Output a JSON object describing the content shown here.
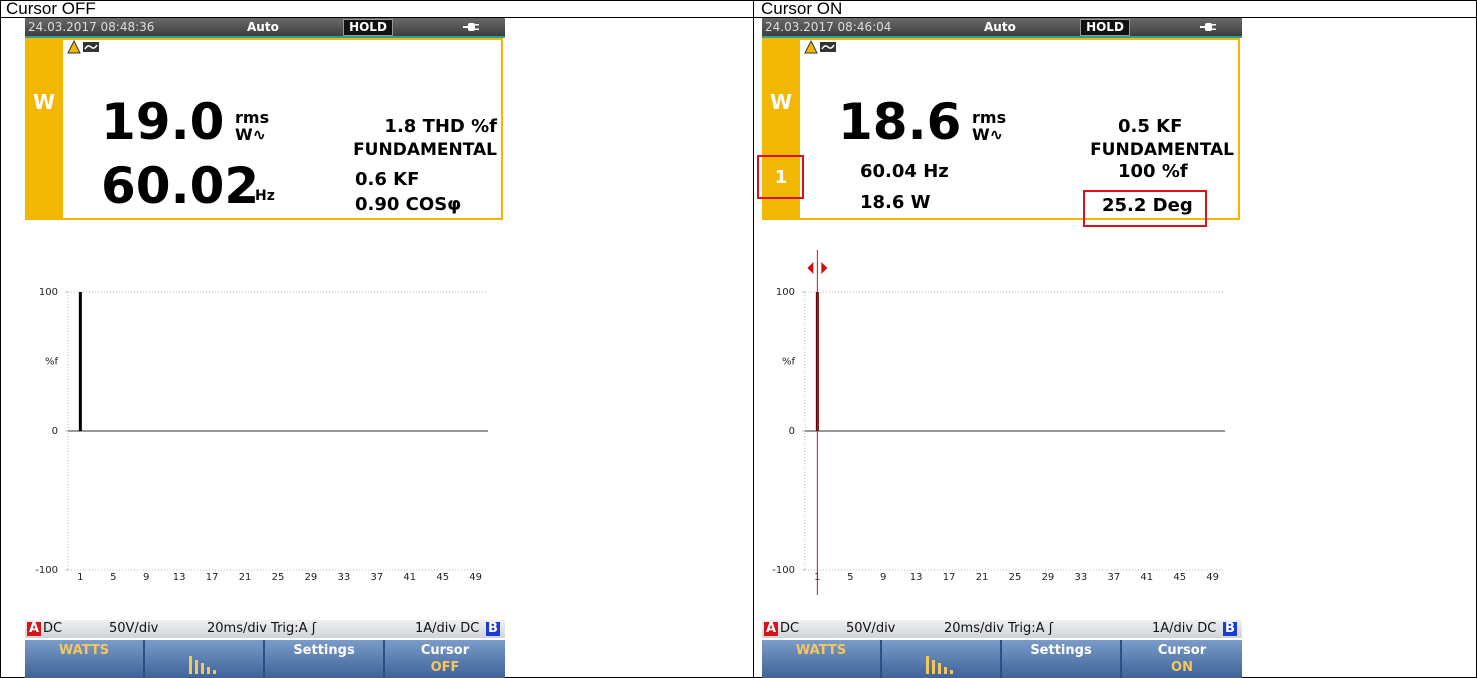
{
  "table": {
    "headers": [
      "Cursor OFF",
      "Cursor ON"
    ]
  },
  "panels": [
    {
      "status": {
        "datetime": "24.03.2017 08:48:36",
        "mode": "Auto",
        "hold": "HOLD"
      },
      "function": "W",
      "readings": {
        "main_value": "19.0",
        "main_unit_top": "rms",
        "main_unit_bottom": "W∿",
        "right_top": "1.8 THD %f",
        "right_sub": "FUNDAMENTAL",
        "second_value": "60.02",
        "second_unit": "Hz",
        "right_mid": "0.6 KF",
        "right_bottom": "0.90 COSφ"
      },
      "chart": {
        "type": "bar",
        "ylabel": "%f",
        "ylim": [
          -100,
          100
        ],
        "yticks": [
          -100,
          0,
          100
        ],
        "xlim": [
          -0.5,
          50.5
        ],
        "xticks": [
          1,
          5,
          9,
          13,
          17,
          21,
          25,
          29,
          33,
          37,
          41,
          45,
          49
        ],
        "x": [
          1
        ],
        "values": [
          100
        ],
        "color": "#000000"
      },
      "footer": {
        "a": "A",
        "a_coupling": "DC",
        "a_scale": "50V/div",
        "timebase": "20ms/div Trig:A ʃ",
        "b_scale": "1A/div DC",
        "b": "B"
      },
      "buttons": {
        "watts": "WATTS",
        "settings": "Settings",
        "cursor": "Cursor",
        "cursor_state": "OFF"
      }
    },
    {
      "status": {
        "datetime": "24.03.2017 08:46:04",
        "mode": "Auto",
        "hold": "HOLD"
      },
      "function": "W",
      "cursor_harmonic_label": "1",
      "readings": {
        "main_value": "18.6",
        "main_unit_top": "rms",
        "main_unit_bottom": "W∿",
        "right_top": "0.5 KF",
        "right_sub": "FUNDAMENTAL",
        "left_mid": "60.04 Hz",
        "left_bottom": "18.6 W",
        "right_mid": "100 %f",
        "right_bottom": "25.2 Deg"
      },
      "chart": {
        "type": "bar",
        "ylabel": "%f",
        "ylim": [
          -100,
          100
        ],
        "yticks": [
          -100,
          0,
          100
        ],
        "xlim": [
          -0.5,
          50.5
        ],
        "xticks": [
          1,
          5,
          9,
          13,
          17,
          21,
          25,
          29,
          33,
          37,
          41,
          45,
          49
        ],
        "x": [
          1
        ],
        "values": [
          100
        ],
        "color": "#5a0000",
        "cursor": 1
      },
      "footer": {
        "a": "A",
        "a_coupling": "DC",
        "a_scale": "50V/div",
        "timebase": "20ms/div Trig:A ʃ",
        "b_scale": "1A/div DC",
        "b": "B"
      },
      "buttons": {
        "watts": "WATTS",
        "settings": "Settings",
        "cursor": "Cursor",
        "cursor_state": "ON"
      }
    }
  ]
}
